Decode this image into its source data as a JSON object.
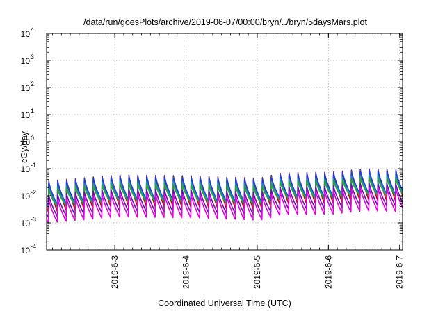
{
  "chart_data": {
    "type": "line",
    "title": "/data/run/goesPlots/archive/2019-06-07/00:00/bryn/../bryn/5daysMars.plot",
    "xlabel": "Coordinated Universal Time (UTC)",
    "ylabel": "cGy/day",
    "xlim": [
      "2019-06-02 01:00",
      "2019-06-07 01:00"
    ],
    "ylim": [
      0.0001,
      10000
    ],
    "y_scale": "log",
    "grid": true,
    "legend": "none",
    "x_ticks": [
      "2019-6-3",
      "2019-6-4",
      "2019-6-5",
      "2019-6-6",
      "2019-6-7"
    ],
    "y_tick_exponents": [
      "-4",
      "-3",
      "-2",
      "-1",
      "0",
      "1",
      "2",
      "3",
      "4"
    ],
    "y_tick_base": "10",
    "cycle_hours": 3,
    "cycles_per_day": 8,
    "cycle_peak": {
      "description": "peak of each 3-hour sawtooth cycle for the top (blue) trace, cGy/day",
      "x": [
        "2019-06-02 01:00",
        "2019-06-03 01:00",
        "2019-06-04 01:00",
        "2019-06-05 01:00",
        "2019-06-05 08:00",
        "2019-06-06 01:00",
        "2019-06-06 12:00",
        "2019-06-07 01:00"
      ],
      "y": [
        0.035,
        0.06,
        0.055,
        0.045,
        0.07,
        0.075,
        0.1,
        0.09
      ]
    },
    "series": [
      {
        "color": "#d00000",
        "peak_factor": 1.08,
        "trough_factor": 0.07
      },
      {
        "color": "#1f3fdc",
        "peak_factor": 1.0,
        "trough_factor": 0.12
      },
      {
        "color": "#00a0b0",
        "peak_factor": 0.62,
        "trough_factor": 0.11
      },
      {
        "color": "#30a030",
        "peak_factor": 0.48,
        "trough_factor": 0.1
      },
      {
        "color": "#6a0dad",
        "peak_factor": 0.32,
        "trough_factor": 0.045
      },
      {
        "color": "#e000e0",
        "peak_factor": 0.22,
        "trough_factor": 0.028
      }
    ]
  }
}
